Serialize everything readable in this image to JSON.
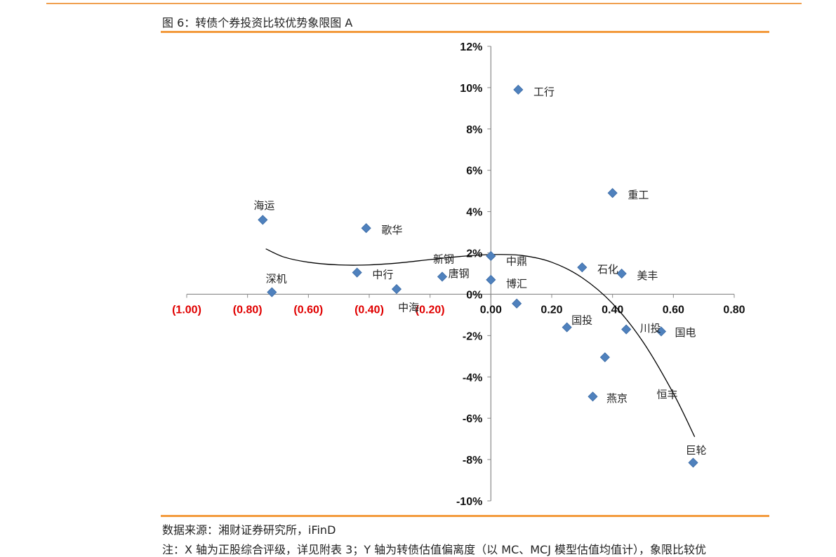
{
  "figure": {
    "title": "图 6：转债个券投资比较优势象限图 A",
    "source": "数据来源：湘财证券研究所，iFinD",
    "note": "注：X 轴为正股综合评级，详见附表 3；Y 轴为转债估值偏离度（以 MC、MCJ 模型估值均值计），象限比较优"
  },
  "colors": {
    "accent_rule": "#f39a3c",
    "marker": "#4f81bd",
    "marker_edge": "#3a6aa5",
    "negative_tick": "#e00000",
    "positive_tick": "#111111",
    "axis": "#888888"
  },
  "chart_data": {
    "type": "scatter",
    "title": "",
    "xlabel": "",
    "ylabel": "",
    "xlim": [
      -1.0,
      0.8
    ],
    "ylim": [
      -10,
      12
    ],
    "x_ticks": [
      {
        "value": -1.0,
        "label": "(1.00)"
      },
      {
        "value": -0.8,
        "label": "(0.80)"
      },
      {
        "value": -0.6,
        "label": "(0.60)"
      },
      {
        "value": -0.4,
        "label": "(0.40)"
      },
      {
        "value": -0.2,
        "label": "(0.20)"
      },
      {
        "value": 0.0,
        "label": "0.00"
      },
      {
        "value": 0.2,
        "label": "0.20"
      },
      {
        "value": 0.4,
        "label": "0.40"
      },
      {
        "value": 0.6,
        "label": "0.60"
      },
      {
        "value": 0.8,
        "label": "0.80"
      }
    ],
    "y_ticks": [
      {
        "value": 12,
        "label": "12%"
      },
      {
        "value": 10,
        "label": "10%"
      },
      {
        "value": 8,
        "label": "8%"
      },
      {
        "value": 6,
        "label": "6%"
      },
      {
        "value": 4,
        "label": "4%"
      },
      {
        "value": 2,
        "label": "2%"
      },
      {
        "value": 0,
        "label": "0%"
      },
      {
        "value": -2,
        "label": "-2%"
      },
      {
        "value": -4,
        "label": "-4%"
      },
      {
        "value": -6,
        "label": "-6%"
      },
      {
        "value": -8,
        "label": "-8%"
      },
      {
        "value": -10,
        "label": "-10%"
      }
    ],
    "points": [
      {
        "name": "工行",
        "x": 0.09,
        "y": 9.9
      },
      {
        "name": "重工",
        "x": 0.4,
        "y": 4.9
      },
      {
        "name": "海运",
        "x": -0.75,
        "y": 3.6
      },
      {
        "name": "歌华",
        "x": -0.41,
        "y": 3.2
      },
      {
        "name": "中鼎",
        "x": 0.0,
        "y": 1.85
      },
      {
        "name": "新钢",
        "x": -0.16,
        "y": 0.85
      },
      {
        "name": "中行",
        "x": -0.44,
        "y": 1.05
      },
      {
        "name": "唐钢",
        "x": 0.0,
        "y": 0.7
      },
      {
        "name": "石化",
        "x": 0.3,
        "y": 1.3
      },
      {
        "name": "美丰",
        "x": 0.43,
        "y": 1.0
      },
      {
        "name": "深机",
        "x": -0.72,
        "y": 0.1
      },
      {
        "name": "中海",
        "x": -0.31,
        "y": 0.25
      },
      {
        "name": "博汇",
        "x": 0.085,
        "y": -0.45
      },
      {
        "name": "国投",
        "x": 0.25,
        "y": -1.6
      },
      {
        "name": "川投",
        "x": 0.445,
        "y": -1.7
      },
      {
        "name": "国电",
        "x": 0.56,
        "y": -1.8
      },
      {
        "name": "恒丰",
        "x": 0.375,
        "y": -3.05
      },
      {
        "name": "燕京",
        "x": 0.335,
        "y": -4.95
      },
      {
        "name": "巨轮",
        "x": 0.665,
        "y": -8.15
      }
    ],
    "labels": [
      {
        "text": "工行",
        "x": 0.14,
        "y": 9.8
      },
      {
        "text": "重工",
        "x": 0.45,
        "y": 4.8
      },
      {
        "text": "海运",
        "x": -0.78,
        "y": 4.3
      },
      {
        "text": "歌华",
        "x": -0.36,
        "y": 3.1
      },
      {
        "text": "中鼎",
        "x": 0.05,
        "y": 1.6
      },
      {
        "text": "新钢",
        "x": -0.19,
        "y": 1.7
      },
      {
        "text": "中行",
        "x": -0.39,
        "y": 0.95
      },
      {
        "text": "唐钢",
        "x": -0.14,
        "y": 1.0
      },
      {
        "text": "石化",
        "x": 0.35,
        "y": 1.2
      },
      {
        "text": "美丰",
        "x": 0.48,
        "y": 0.9
      },
      {
        "text": "深机",
        "x": -0.74,
        "y": 0.75
      },
      {
        "text": "中海",
        "x": -0.305,
        "y": -0.65
      },
      {
        "text": "博汇",
        "x": 0.05,
        "y": 0.5
      },
      {
        "text": "国投",
        "x": 0.265,
        "y": -1.25
      },
      {
        "text": "川投",
        "x": 0.49,
        "y": -1.65
      },
      {
        "text": "国电",
        "x": 0.605,
        "y": -1.85
      },
      {
        "text": "恒丰",
        "x": 0.545,
        "y": -4.85
      },
      {
        "text": "燕京",
        "x": 0.38,
        "y": -5.05
      },
      {
        "text": "巨轮",
        "x": 0.64,
        "y": -7.55
      }
    ],
    "trend_curve": [
      {
        "x": -0.74,
        "y": 2.2
      },
      {
        "x": -0.68,
        "y": 1.8
      },
      {
        "x": -0.6,
        "y": 1.55
      },
      {
        "x": -0.5,
        "y": 1.42
      },
      {
        "x": -0.4,
        "y": 1.42
      },
      {
        "x": -0.3,
        "y": 1.52
      },
      {
        "x": -0.2,
        "y": 1.68
      },
      {
        "x": -0.1,
        "y": 1.83
      },
      {
        "x": 0.0,
        "y": 1.92
      },
      {
        "x": 0.1,
        "y": 1.88
      },
      {
        "x": 0.2,
        "y": 1.55
      },
      {
        "x": 0.3,
        "y": 0.8
      },
      {
        "x": 0.4,
        "y": -0.45
      },
      {
        "x": 0.5,
        "y": -2.3
      },
      {
        "x": 0.6,
        "y": -4.8
      },
      {
        "x": 0.67,
        "y": -6.9
      }
    ],
    "grid": false,
    "legend": "none"
  }
}
